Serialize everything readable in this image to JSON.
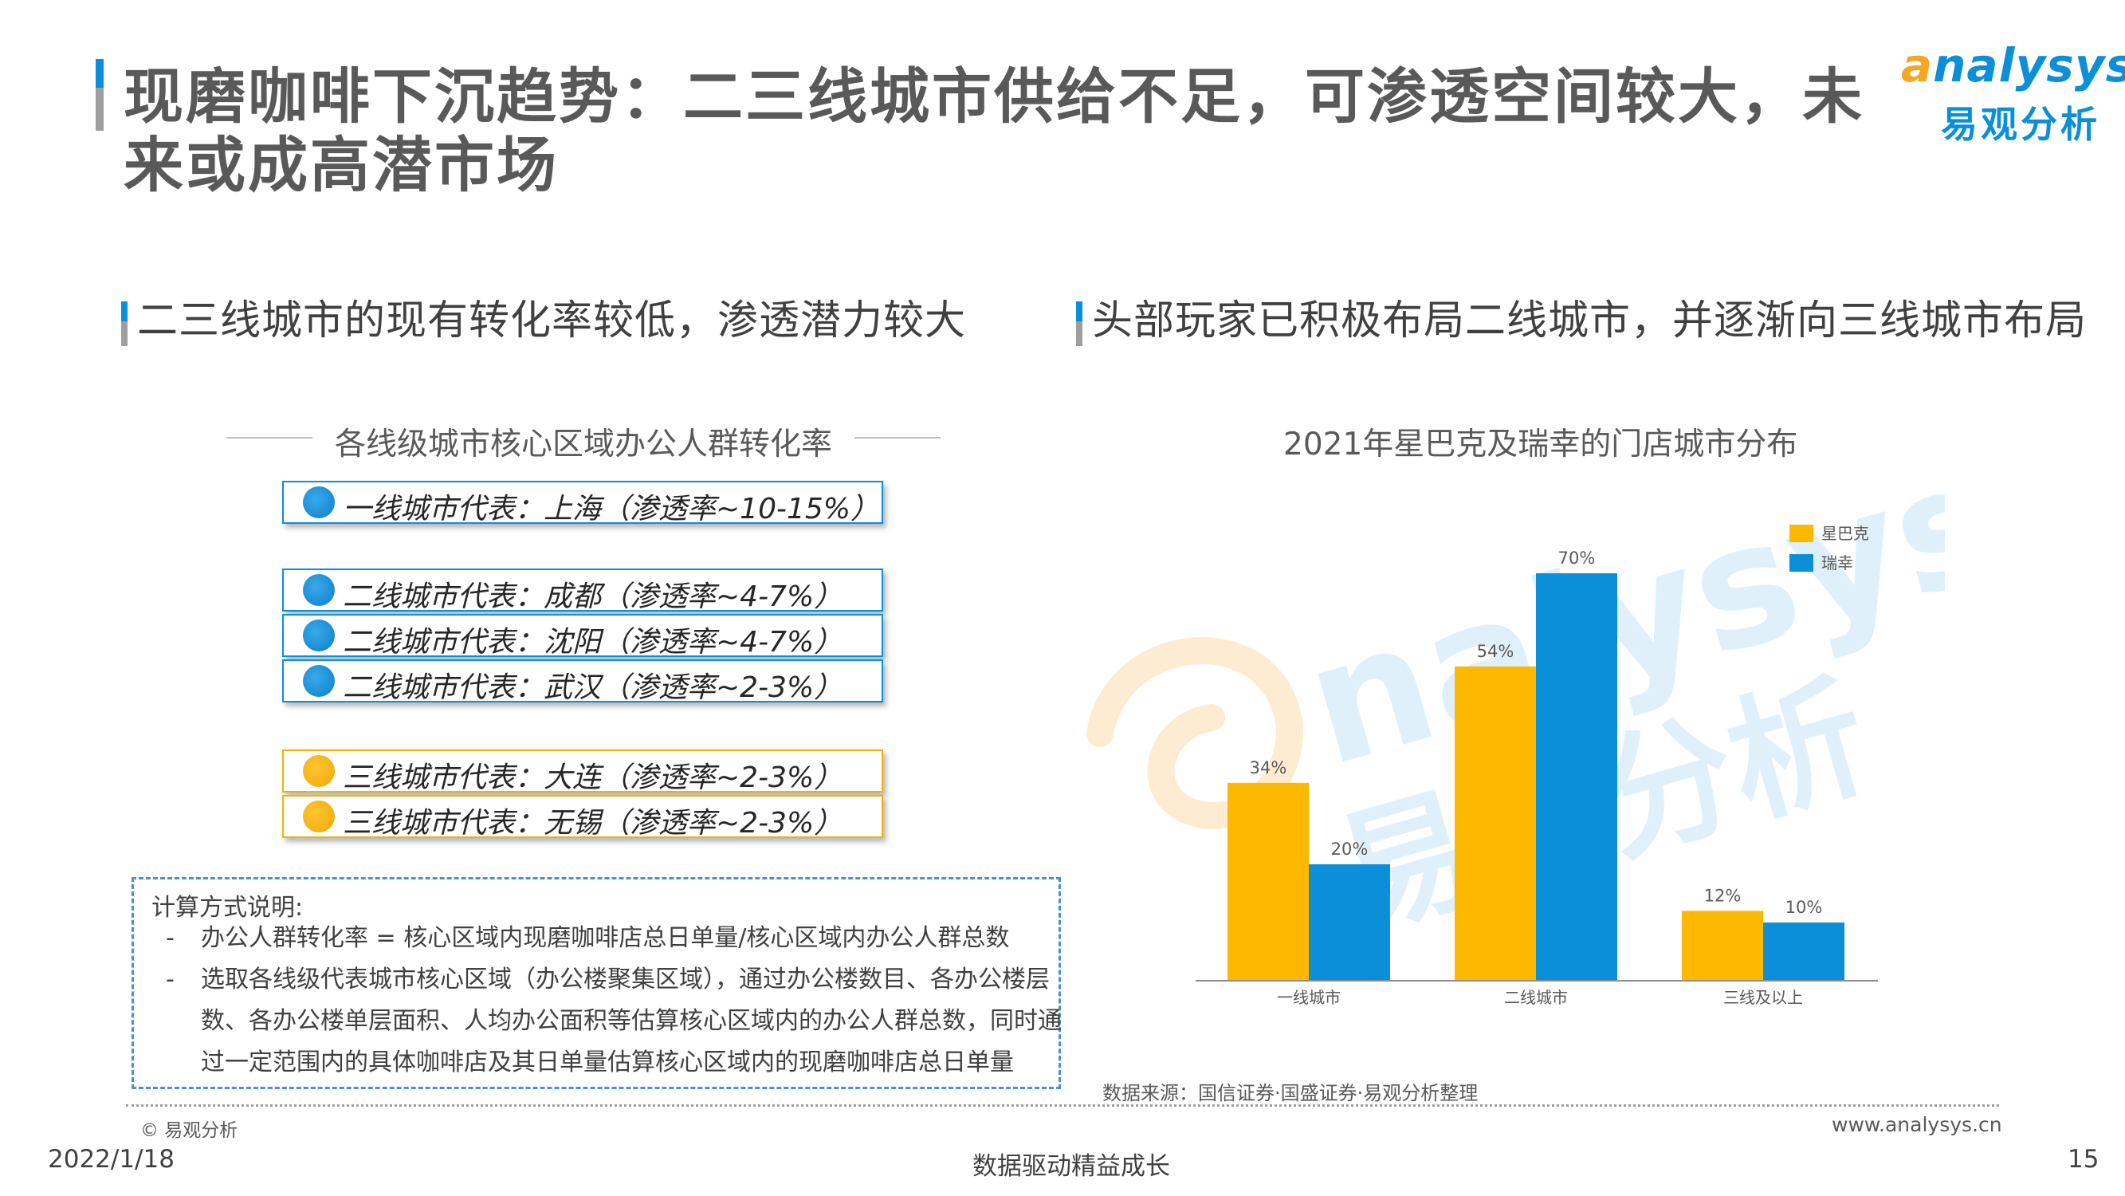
{
  "title": "现磨咖啡下沉趋势：二三线城市供给不足，可渗透空间较大，未来或成高潜市场",
  "logo": {
    "brand_en_first": "a",
    "brand_en_rest": "nalysys",
    "brand_cn": "易观分析"
  },
  "left_section": {
    "heading": "二三线城市的现有转化率较低，渗透潜力较大",
    "subtitle": "各线级城市核心区域办公人群转化率",
    "cities": [
      {
        "text": "一线城市代表：上海（渗透率~10-15%）",
        "tier": "blue"
      },
      {
        "text": "二线城市代表：成都（渗透率~4-7%）",
        "tier": "blue"
      },
      {
        "text": "二线城市代表：沈阳（渗透率~4-7%）",
        "tier": "blue"
      },
      {
        "text": "二线城市代表：武汉（渗透率~2-3%）",
        "tier": "blue"
      },
      {
        "text": "三线城市代表：大连（渗透率~2-3%）",
        "tier": "gold"
      },
      {
        "text": "三线城市代表：无锡（渗透率~2-3%）",
        "tier": "gold"
      }
    ],
    "note": {
      "heading": "计算方式说明:",
      "bullet1": "-",
      "line1": "办公人群转化率 = 核心区域内现磨咖啡店总日单量/核心区域内办公人群总数",
      "bullet2": "-",
      "line2": "选取各线级代表城市核心区域（办公楼聚集区域），通过办公楼数目、各办公楼层",
      "line3": "数、各办公楼单层面积、人均办公面积等估算核心区域内的办公人群总数，同时通",
      "line4": "过一定范围内的具体咖啡店及其日单量估算核心区域内的现磨咖啡店总日单量"
    }
  },
  "right_section": {
    "heading": "头部玩家已积极布局二线城市，并逐渐向三线城市布局",
    "source": "数据来源：国信证券·国盛证券·易观分析整理"
  },
  "chart_data": {
    "type": "bar",
    "title": "2021年星巴克及瑞幸的门店城市分布",
    "categories": [
      "一线城市",
      "二线城市",
      "三线及以上"
    ],
    "series": [
      {
        "name": "星巴克",
        "values": [
          34,
          54,
          12
        ],
        "labels": [
          "34%",
          "54%",
          "12%"
        ],
        "color": "#ffb800"
      },
      {
        "name": "瑞幸",
        "values": [
          20,
          70,
          10
        ],
        "labels": [
          "20%",
          "70%",
          "10%"
        ],
        "color": "#0a8fd8"
      }
    ],
    "ylim": [
      0,
      70
    ],
    "grid": false,
    "legend": "top-right",
    "xlabel": "",
    "ylabel": ""
  },
  "footer": {
    "copyright": "© 易观分析",
    "website": "www.analysys.cn",
    "date": "2022/1/18",
    "slogan": "数据驱动精益成长",
    "page": "15"
  },
  "colors": {
    "accent": "#0a8fd8",
    "gold": "#ffb800",
    "text": "#595959"
  }
}
